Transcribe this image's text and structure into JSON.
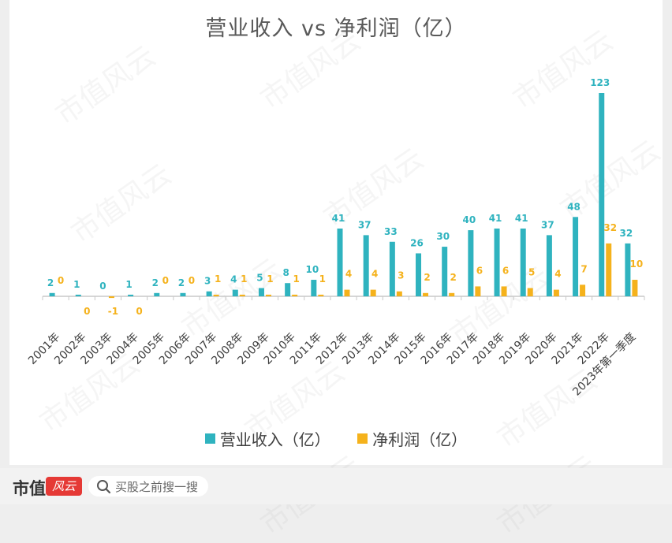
{
  "chart_data": {
    "type": "bar",
    "title": "营业收入 vs 净利润（亿）",
    "categories": [
      "2001年",
      "2002年",
      "2003年",
      "2004年",
      "2005年",
      "2006年",
      "2007年",
      "2008年",
      "2009年",
      "2010年",
      "2011年",
      "2012年",
      "2013年",
      "2014年",
      "2015年",
      "2016年",
      "2017年",
      "2018年",
      "2019年",
      "2020年",
      "2021年",
      "2022年",
      "2023年第一季度"
    ],
    "series": [
      {
        "name": "营业收入（亿）",
        "color": "#2fb3bf",
        "values": [
          2,
          1,
          0,
          1,
          2,
          2,
          3,
          4,
          5,
          8,
          10,
          41,
          37,
          33,
          26,
          30,
          40,
          41,
          41,
          37,
          48,
          123,
          32
        ]
      },
      {
        "name": "净利润（亿）",
        "color": "#f5b21c",
        "values": [
          0,
          0,
          -1,
          0,
          0,
          0,
          1,
          1,
          1,
          1,
          1,
          4,
          4,
          3,
          2,
          2,
          6,
          6,
          5,
          4,
          7,
          32,
          10
        ]
      }
    ],
    "xlabel": "",
    "ylabel": "",
    "ylim": [
      -2,
      125
    ],
    "grid": false,
    "legend": "bottom"
  },
  "watermark_text": "市值风云",
  "footer": {
    "brand": "市值",
    "brand_badge": "风云",
    "search_placeholder": "买股之前搜一搜"
  }
}
